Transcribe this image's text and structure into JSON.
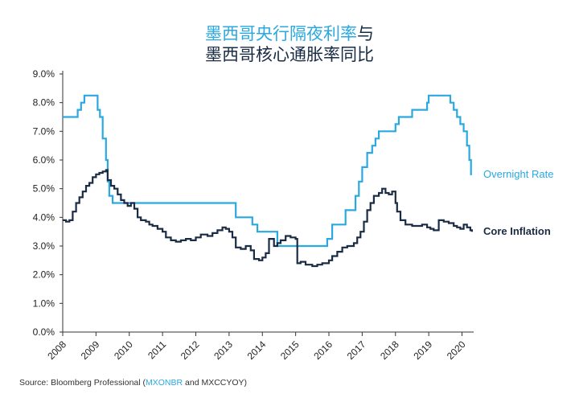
{
  "title": {
    "line1_accent": "墨西哥央行隔夜利率",
    "line1_rest": "与",
    "line2": "墨西哥核心通胀率同比"
  },
  "source": {
    "prefix": "Source: Bloomberg Professional (",
    "ticker1": "MXONBR",
    "middle": " and MXCCYOY)"
  },
  "colors": {
    "overnight": "#2aa8e0",
    "core": "#1a2b44",
    "axis": "#333333"
  },
  "chart_data": {
    "type": "line",
    "xlim": [
      2008.0,
      2020.35
    ],
    "ylim": [
      0,
      9
    ],
    "x_ticks": [
      "2008",
      "2009",
      "2010",
      "2011",
      "2012",
      "2013",
      "2014",
      "2015",
      "2016",
      "2017",
      "2018",
      "2019",
      "2020"
    ],
    "y_ticks": [
      "0.0%",
      "1.0%",
      "2.0%",
      "3.0%",
      "4.0%",
      "5.0%",
      "6.0%",
      "7.0%",
      "8.0%",
      "9.0%"
    ],
    "grid": false,
    "series": [
      {
        "name": "Overnight Rate",
        "step": true,
        "points": [
          [
            2008.0,
            7.5
          ],
          [
            2008.45,
            7.75
          ],
          [
            2008.55,
            8.0
          ],
          [
            2008.65,
            8.25
          ],
          [
            2009.05,
            7.75
          ],
          [
            2009.12,
            7.5
          ],
          [
            2009.2,
            6.75
          ],
          [
            2009.3,
            6.0
          ],
          [
            2009.35,
            5.25
          ],
          [
            2009.4,
            4.75
          ],
          [
            2009.5,
            4.5
          ],
          [
            2013.2,
            4.0
          ],
          [
            2013.7,
            3.75
          ],
          [
            2013.85,
            3.5
          ],
          [
            2014.45,
            3.0
          ],
          [
            2015.95,
            3.25
          ],
          [
            2016.1,
            3.75
          ],
          [
            2016.5,
            4.25
          ],
          [
            2016.8,
            4.75
          ],
          [
            2016.9,
            5.25
          ],
          [
            2017.0,
            5.75
          ],
          [
            2017.15,
            6.25
          ],
          [
            2017.3,
            6.5
          ],
          [
            2017.4,
            6.75
          ],
          [
            2017.5,
            7.0
          ],
          [
            2018.0,
            7.25
          ],
          [
            2018.1,
            7.5
          ],
          [
            2018.5,
            7.75
          ],
          [
            2018.95,
            8.0
          ],
          [
            2019.0,
            8.25
          ],
          [
            2019.65,
            8.0
          ],
          [
            2019.75,
            7.75
          ],
          [
            2019.85,
            7.5
          ],
          [
            2019.95,
            7.25
          ],
          [
            2020.05,
            7.0
          ],
          [
            2020.15,
            6.5
          ],
          [
            2020.22,
            6.0
          ],
          [
            2020.27,
            5.5
          ],
          [
            2020.3,
            5.5
          ]
        ]
      },
      {
        "name": "Core Inflation",
        "step": true,
        "points": [
          [
            2008.0,
            3.9
          ],
          [
            2008.1,
            3.85
          ],
          [
            2008.2,
            3.9
          ],
          [
            2008.3,
            4.2
          ],
          [
            2008.4,
            4.5
          ],
          [
            2008.5,
            4.7
          ],
          [
            2008.6,
            4.9
          ],
          [
            2008.7,
            5.1
          ],
          [
            2008.8,
            5.2
          ],
          [
            2008.9,
            5.4
          ],
          [
            2009.0,
            5.5
          ],
          [
            2009.1,
            5.55
          ],
          [
            2009.2,
            5.6
          ],
          [
            2009.3,
            5.65
          ],
          [
            2009.35,
            5.3
          ],
          [
            2009.45,
            5.1
          ],
          [
            2009.55,
            5.0
          ],
          [
            2009.65,
            4.8
          ],
          [
            2009.75,
            4.6
          ],
          [
            2009.85,
            4.5
          ],
          [
            2009.95,
            4.4
          ],
          [
            2010.05,
            4.5
          ],
          [
            2010.15,
            4.3
          ],
          [
            2010.25,
            4.0
          ],
          [
            2010.35,
            3.9
          ],
          [
            2010.5,
            3.85
          ],
          [
            2010.6,
            3.75
          ],
          [
            2010.7,
            3.7
          ],
          [
            2010.85,
            3.6
          ],
          [
            2011.0,
            3.5
          ],
          [
            2011.1,
            3.3
          ],
          [
            2011.25,
            3.2
          ],
          [
            2011.4,
            3.15
          ],
          [
            2011.55,
            3.2
          ],
          [
            2011.7,
            3.25
          ],
          [
            2011.85,
            3.2
          ],
          [
            2012.0,
            3.3
          ],
          [
            2012.15,
            3.4
          ],
          [
            2012.35,
            3.35
          ],
          [
            2012.5,
            3.45
          ],
          [
            2012.65,
            3.55
          ],
          [
            2012.8,
            3.65
          ],
          [
            2012.9,
            3.6
          ],
          [
            2013.0,
            3.5
          ],
          [
            2013.1,
            3.3
          ],
          [
            2013.2,
            2.95
          ],
          [
            2013.35,
            2.9
          ],
          [
            2013.5,
            3.0
          ],
          [
            2013.65,
            2.85
          ],
          [
            2013.75,
            2.55
          ],
          [
            2013.9,
            2.5
          ],
          [
            2014.0,
            2.6
          ],
          [
            2014.1,
            2.75
          ],
          [
            2014.2,
            3.25
          ],
          [
            2014.35,
            3.0
          ],
          [
            2014.45,
            3.1
          ],
          [
            2014.55,
            3.2
          ],
          [
            2014.7,
            3.35
          ],
          [
            2014.85,
            3.3
          ],
          [
            2015.0,
            3.25
          ],
          [
            2015.05,
            2.4
          ],
          [
            2015.15,
            2.45
          ],
          [
            2015.3,
            2.35
          ],
          [
            2015.5,
            2.3
          ],
          [
            2015.65,
            2.35
          ],
          [
            2015.8,
            2.4
          ],
          [
            2016.0,
            2.5
          ],
          [
            2016.1,
            2.65
          ],
          [
            2016.25,
            2.8
          ],
          [
            2016.4,
            2.95
          ],
          [
            2016.55,
            3.0
          ],
          [
            2016.75,
            3.1
          ],
          [
            2016.85,
            3.3
          ],
          [
            2016.95,
            3.5
          ],
          [
            2017.05,
            3.85
          ],
          [
            2017.15,
            4.25
          ],
          [
            2017.25,
            4.5
          ],
          [
            2017.35,
            4.75
          ],
          [
            2017.5,
            4.85
          ],
          [
            2017.6,
            5.0
          ],
          [
            2017.7,
            4.85
          ],
          [
            2017.8,
            4.8
          ],
          [
            2017.9,
            4.9
          ],
          [
            2018.0,
            4.5
          ],
          [
            2018.05,
            4.2
          ],
          [
            2018.15,
            3.9
          ],
          [
            2018.3,
            3.75
          ],
          [
            2018.5,
            3.7
          ],
          [
            2018.65,
            3.7
          ],
          [
            2018.8,
            3.75
          ],
          [
            2018.95,
            3.65
          ],
          [
            2019.05,
            3.6
          ],
          [
            2019.15,
            3.55
          ],
          [
            2019.3,
            3.9
          ],
          [
            2019.45,
            3.85
          ],
          [
            2019.6,
            3.8
          ],
          [
            2019.75,
            3.7
          ],
          [
            2019.85,
            3.65
          ],
          [
            2019.95,
            3.6
          ],
          [
            2020.05,
            3.75
          ],
          [
            2020.15,
            3.65
          ],
          [
            2020.25,
            3.55
          ],
          [
            2020.3,
            3.5
          ]
        ]
      }
    ]
  }
}
